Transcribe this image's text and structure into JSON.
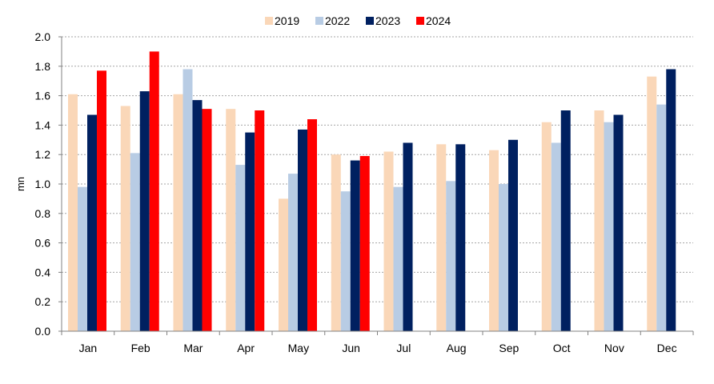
{
  "chart_data": {
    "type": "bar",
    "title": "",
    "xlabel": "",
    "ylabel": "mn",
    "ylim": [
      0,
      2.0
    ],
    "ytick_step": 0.2,
    "grid": true,
    "legend_position": "top-center",
    "categories": [
      "Jan",
      "Feb",
      "Mar",
      "Apr",
      "May",
      "Jun",
      "Jul",
      "Aug",
      "Sep",
      "Oct",
      "Nov",
      "Dec"
    ],
    "series": [
      {
        "name": "2019",
        "color": "#FAD7B8",
        "values": [
          1.61,
          1.53,
          1.61,
          1.51,
          0.9,
          1.2,
          1.22,
          1.27,
          1.23,
          1.42,
          1.5,
          1.73
        ]
      },
      {
        "name": "2022",
        "color": "#B8CCE4",
        "values": [
          0.98,
          1.21,
          1.78,
          1.13,
          1.07,
          0.95,
          0.98,
          1.02,
          1.0,
          1.28,
          1.42,
          1.54
        ]
      },
      {
        "name": "2023",
        "color": "#002060",
        "values": [
          1.47,
          1.63,
          1.57,
          1.35,
          1.37,
          1.16,
          1.28,
          1.27,
          1.3,
          1.5,
          1.47,
          1.78
        ]
      },
      {
        "name": "2024",
        "color": "#FF0000",
        "values": [
          1.77,
          1.9,
          1.51,
          1.5,
          1.44,
          1.19,
          null,
          null,
          null,
          null,
          null,
          null
        ]
      }
    ]
  }
}
